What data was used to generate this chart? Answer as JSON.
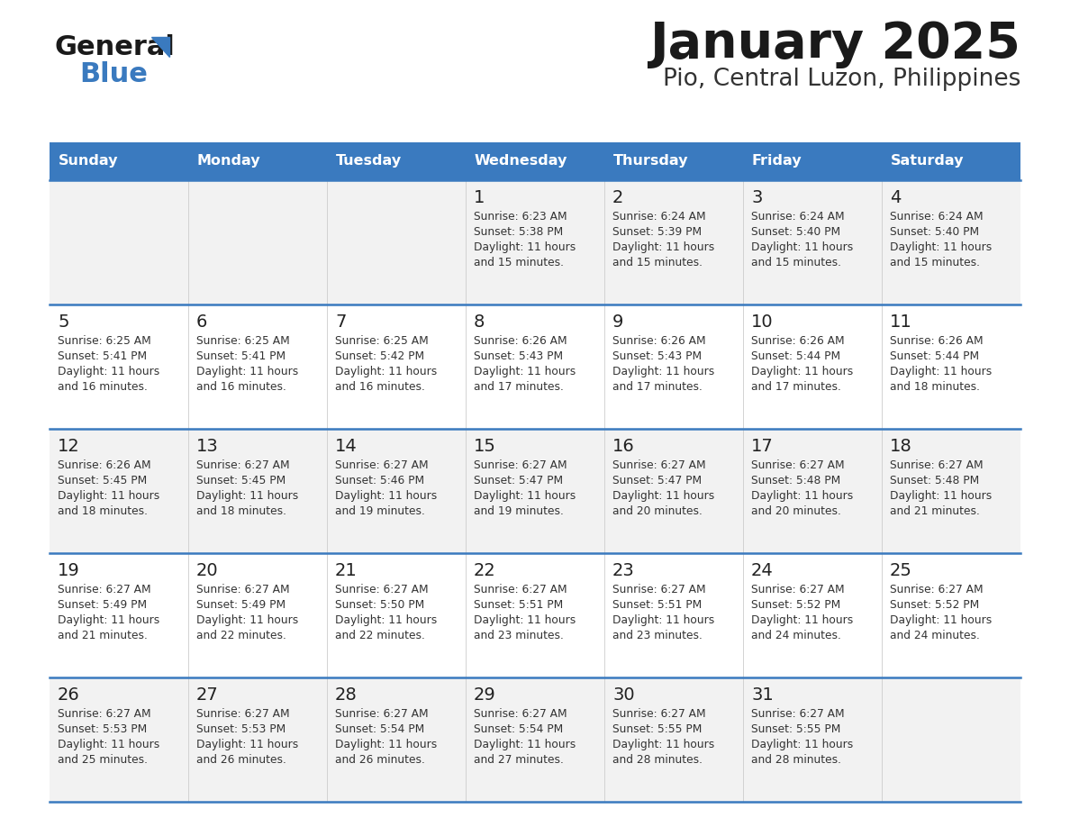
{
  "title": "January 2025",
  "subtitle": "Pio, Central Luzon, Philippines",
  "header_bg_color": "#3a7abf",
  "header_text_color": "#ffffff",
  "day_names": [
    "Sunday",
    "Monday",
    "Tuesday",
    "Wednesday",
    "Thursday",
    "Friday",
    "Saturday"
  ],
  "odd_row_bg": "#f2f2f2",
  "even_row_bg": "#ffffff",
  "border_color": "#3a7abf",
  "title_color": "#1a1a1a",
  "subtitle_color": "#333333",
  "number_color": "#222222",
  "text_color": "#333333",
  "calendar": [
    [
      null,
      null,
      null,
      {
        "day": 1,
        "sunrise": "6:23 AM",
        "sunset": "5:38 PM",
        "daylight": "11 hours and 15 minutes."
      },
      {
        "day": 2,
        "sunrise": "6:24 AM",
        "sunset": "5:39 PM",
        "daylight": "11 hours and 15 minutes."
      },
      {
        "day": 3,
        "sunrise": "6:24 AM",
        "sunset": "5:40 PM",
        "daylight": "11 hours and 15 minutes."
      },
      {
        "day": 4,
        "sunrise": "6:24 AM",
        "sunset": "5:40 PM",
        "daylight": "11 hours and 15 minutes."
      }
    ],
    [
      {
        "day": 5,
        "sunrise": "6:25 AM",
        "sunset": "5:41 PM",
        "daylight": "11 hours and 16 minutes."
      },
      {
        "day": 6,
        "sunrise": "6:25 AM",
        "sunset": "5:41 PM",
        "daylight": "11 hours and 16 minutes."
      },
      {
        "day": 7,
        "sunrise": "6:25 AM",
        "sunset": "5:42 PM",
        "daylight": "11 hours and 16 minutes."
      },
      {
        "day": 8,
        "sunrise": "6:26 AM",
        "sunset": "5:43 PM",
        "daylight": "11 hours and 17 minutes."
      },
      {
        "day": 9,
        "sunrise": "6:26 AM",
        "sunset": "5:43 PM",
        "daylight": "11 hours and 17 minutes."
      },
      {
        "day": 10,
        "sunrise": "6:26 AM",
        "sunset": "5:44 PM",
        "daylight": "11 hours and 17 minutes."
      },
      {
        "day": 11,
        "sunrise": "6:26 AM",
        "sunset": "5:44 PM",
        "daylight": "11 hours and 18 minutes."
      }
    ],
    [
      {
        "day": 12,
        "sunrise": "6:26 AM",
        "sunset": "5:45 PM",
        "daylight": "11 hours and 18 minutes."
      },
      {
        "day": 13,
        "sunrise": "6:27 AM",
        "sunset": "5:45 PM",
        "daylight": "11 hours and 18 minutes."
      },
      {
        "day": 14,
        "sunrise": "6:27 AM",
        "sunset": "5:46 PM",
        "daylight": "11 hours and 19 minutes."
      },
      {
        "day": 15,
        "sunrise": "6:27 AM",
        "sunset": "5:47 PM",
        "daylight": "11 hours and 19 minutes."
      },
      {
        "day": 16,
        "sunrise": "6:27 AM",
        "sunset": "5:47 PM",
        "daylight": "11 hours and 20 minutes."
      },
      {
        "day": 17,
        "sunrise": "6:27 AM",
        "sunset": "5:48 PM",
        "daylight": "11 hours and 20 minutes."
      },
      {
        "day": 18,
        "sunrise": "6:27 AM",
        "sunset": "5:48 PM",
        "daylight": "11 hours and 21 minutes."
      }
    ],
    [
      {
        "day": 19,
        "sunrise": "6:27 AM",
        "sunset": "5:49 PM",
        "daylight": "11 hours and 21 minutes."
      },
      {
        "day": 20,
        "sunrise": "6:27 AM",
        "sunset": "5:49 PM",
        "daylight": "11 hours and 22 minutes."
      },
      {
        "day": 21,
        "sunrise": "6:27 AM",
        "sunset": "5:50 PM",
        "daylight": "11 hours and 22 minutes."
      },
      {
        "day": 22,
        "sunrise": "6:27 AM",
        "sunset": "5:51 PM",
        "daylight": "11 hours and 23 minutes."
      },
      {
        "day": 23,
        "sunrise": "6:27 AM",
        "sunset": "5:51 PM",
        "daylight": "11 hours and 23 minutes."
      },
      {
        "day": 24,
        "sunrise": "6:27 AM",
        "sunset": "5:52 PM",
        "daylight": "11 hours and 24 minutes."
      },
      {
        "day": 25,
        "sunrise": "6:27 AM",
        "sunset": "5:52 PM",
        "daylight": "11 hours and 24 minutes."
      }
    ],
    [
      {
        "day": 26,
        "sunrise": "6:27 AM",
        "sunset": "5:53 PM",
        "daylight": "11 hours and 25 minutes."
      },
      {
        "day": 27,
        "sunrise": "6:27 AM",
        "sunset": "5:53 PM",
        "daylight": "11 hours and 26 minutes."
      },
      {
        "day": 28,
        "sunrise": "6:27 AM",
        "sunset": "5:54 PM",
        "daylight": "11 hours and 26 minutes."
      },
      {
        "day": 29,
        "sunrise": "6:27 AM",
        "sunset": "5:54 PM",
        "daylight": "11 hours and 27 minutes."
      },
      {
        "day": 30,
        "sunrise": "6:27 AM",
        "sunset": "5:55 PM",
        "daylight": "11 hours and 28 minutes."
      },
      {
        "day": 31,
        "sunrise": "6:27 AM",
        "sunset": "5:55 PM",
        "daylight": "11 hours and 28 minutes."
      },
      null
    ]
  ],
  "logo_text_general": "General",
  "logo_text_blue": "Blue",
  "logo_color_general": "#1a1a1a",
  "logo_color_blue": "#3a7abf",
  "fig_width": 11.88,
  "fig_height": 9.18,
  "dpi": 100
}
